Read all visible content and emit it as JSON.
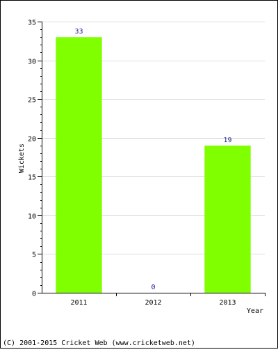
{
  "chart_data": {
    "type": "bar",
    "categories": [
      "2011",
      "2012",
      "2013"
    ],
    "values": [
      33,
      0,
      19
    ],
    "data_labels": [
      "33",
      "0",
      "19"
    ],
    "title": "",
    "xlabel": "Year",
    "ylabel": "Wickets",
    "ylim": [
      0,
      35
    ],
    "y_ticks": [
      0,
      5,
      10,
      15,
      20,
      25,
      30,
      35
    ],
    "y_minor_step": 1,
    "grid": true,
    "bar_color": "#80ff00",
    "label_color": "#1a1a8c",
    "grid_color": "#dddddd"
  },
  "footer": {
    "credit": "(C) 2001-2015 Cricket Web (www.cricketweb.net)"
  }
}
